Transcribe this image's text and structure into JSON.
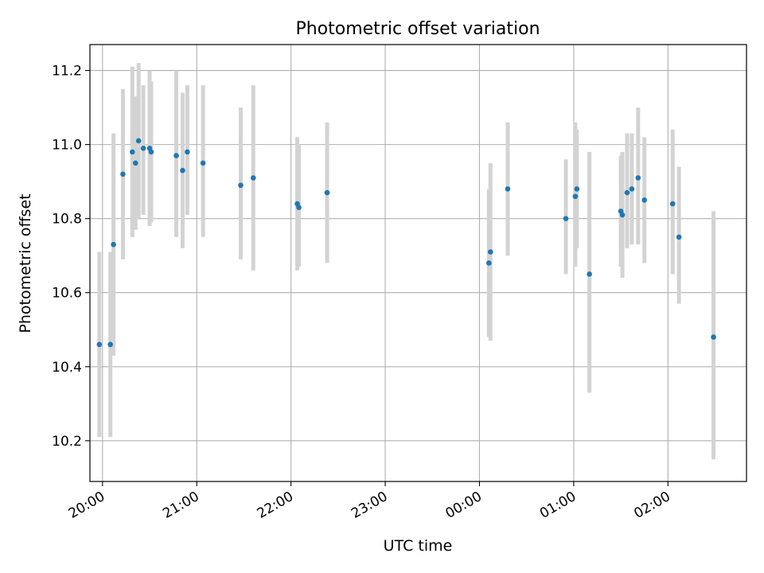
{
  "chart_data": {
    "type": "scatter",
    "title": "Photometric offset variation",
    "xlabel": "UTC time",
    "ylabel": "Photometric offset",
    "xlim": [
      "19:52",
      "02:50"
    ],
    "ylim": [
      10.09,
      11.27
    ],
    "grid": true,
    "x_ticks": [
      "20:00",
      "21:00",
      "22:00",
      "23:00",
      "00:00",
      "01:00",
      "02:00"
    ],
    "y_ticks": [
      10.2,
      10.4,
      10.6,
      10.8,
      11.0,
      11.2
    ],
    "colors": {
      "point": "#1f77b4",
      "errorbar": "#d3d3d3",
      "grid": "#b0b0b0"
    },
    "points": [
      {
        "x": "19:58",
        "y": 10.46,
        "lo": 10.21,
        "hi": 10.71
      },
      {
        "x": "20:05",
        "y": 10.46,
        "lo": 10.21,
        "hi": 10.71
      },
      {
        "x": "20:07",
        "y": 10.73,
        "lo": 10.43,
        "hi": 11.03
      },
      {
        "x": "20:13",
        "y": 10.92,
        "lo": 10.69,
        "hi": 11.15
      },
      {
        "x": "20:19",
        "y": 10.98,
        "lo": 10.75,
        "hi": 11.21
      },
      {
        "x": "20:21",
        "y": 10.95,
        "lo": 10.77,
        "hi": 11.13
      },
      {
        "x": "20:23",
        "y": 11.01,
        "lo": 10.8,
        "hi": 11.22
      },
      {
        "x": "20:26",
        "y": 10.99,
        "lo": 10.81,
        "hi": 11.16
      },
      {
        "x": "20:30",
        "y": 10.99,
        "lo": 10.78,
        "hi": 11.2
      },
      {
        "x": "20:31",
        "y": 10.98,
        "lo": 10.79,
        "hi": 11.17
      },
      {
        "x": "20:47",
        "y": 10.97,
        "lo": 10.75,
        "hi": 11.2
      },
      {
        "x": "20:51",
        "y": 10.93,
        "lo": 10.72,
        "hi": 11.14
      },
      {
        "x": "20:54",
        "y": 10.98,
        "lo": 10.81,
        "hi": 11.16
      },
      {
        "x": "21:04",
        "y": 10.95,
        "lo": 10.75,
        "hi": 11.16
      },
      {
        "x": "21:28",
        "y": 10.89,
        "lo": 10.69,
        "hi": 11.1
      },
      {
        "x": "21:36",
        "y": 10.91,
        "lo": 10.66,
        "hi": 11.16
      },
      {
        "x": "22:04",
        "y": 10.84,
        "lo": 10.66,
        "hi": 11.02
      },
      {
        "x": "22:05",
        "y": 10.83,
        "lo": 10.67,
        "hi": 11.0
      },
      {
        "x": "22:23",
        "y": 10.87,
        "lo": 10.68,
        "hi": 11.06
      },
      {
        "x": "00:06",
        "y": 10.68,
        "lo": 10.48,
        "hi": 10.88
      },
      {
        "x": "00:07",
        "y": 10.71,
        "lo": 10.47,
        "hi": 10.95
      },
      {
        "x": "00:18",
        "y": 10.88,
        "lo": 10.7,
        "hi": 11.06
      },
      {
        "x": "00:55",
        "y": 10.8,
        "lo": 10.65,
        "hi": 10.96
      },
      {
        "x": "01:01",
        "y": 10.86,
        "lo": 10.67,
        "hi": 11.06
      },
      {
        "x": "01:02",
        "y": 10.88,
        "lo": 10.72,
        "hi": 11.04
      },
      {
        "x": "01:10",
        "y": 10.65,
        "lo": 10.33,
        "hi": 10.98
      },
      {
        "x": "01:30",
        "y": 10.82,
        "lo": 10.67,
        "hi": 10.97
      },
      {
        "x": "01:31",
        "y": 10.81,
        "lo": 10.64,
        "hi": 10.98
      },
      {
        "x": "01:34",
        "y": 10.87,
        "lo": 10.72,
        "hi": 11.03
      },
      {
        "x": "01:37",
        "y": 10.88,
        "lo": 10.73,
        "hi": 11.03
      },
      {
        "x": "01:41",
        "y": 10.91,
        "lo": 10.73,
        "hi": 11.1
      },
      {
        "x": "01:45",
        "y": 10.85,
        "lo": 10.68,
        "hi": 11.02
      },
      {
        "x": "02:03",
        "y": 10.84,
        "lo": 10.65,
        "hi": 11.04
      },
      {
        "x": "02:07",
        "y": 10.75,
        "lo": 10.57,
        "hi": 10.94
      },
      {
        "x": "02:29",
        "y": 10.48,
        "lo": 10.15,
        "hi": 10.82
      }
    ]
  }
}
